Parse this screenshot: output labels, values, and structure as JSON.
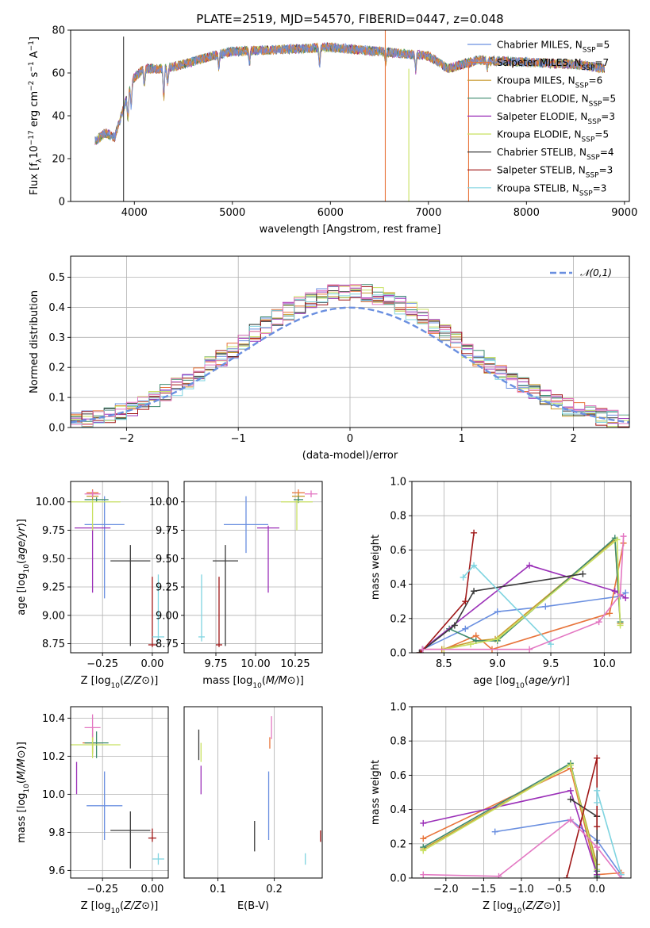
{
  "chart_data": [
    {
      "type": "line",
      "id": "spectrum",
      "title": "PLATE=2519, MJD=54570, FIBERID=0447, z=0.048",
      "xlabel": "wavelength [Angstrom, rest frame]",
      "ylabel": "Flux [f_λ 10^-17 erg cm^-2 s^-1 A^-1]",
      "xlim": [
        3350,
        9050
      ],
      "ylim": [
        0,
        80
      ],
      "xticks": [
        4000,
        5000,
        6000,
        7000,
        8000,
        9000
      ],
      "yticks": [
        0,
        20,
        40,
        60,
        80
      ],
      "legend_position": "top-right",
      "series": [
        {
          "name": "Chabrier MILES, N_SSP=5",
          "color": "#6a8fe0"
        },
        {
          "name": "Salpeter MILES, N_SSP=7",
          "color": "#e8743b"
        },
        {
          "name": "Kroupa MILES, N_SSP=6",
          "color": "#c89a2e"
        },
        {
          "name": "Chabrier ELODIE, N_SSP=5",
          "color": "#3e8a6e"
        },
        {
          "name": "Salpeter ELODIE, N_SSP=3",
          "color": "#9b30b8"
        },
        {
          "name": "Kroupa ELODIE, N_SSP=5",
          "color": "#c8e060"
        },
        {
          "name": "Chabrier STELIB, N_SSP=4",
          "color": "#3a3a3a"
        },
        {
          "name": "Salpeter STELIB, N_SSP=3",
          "color": "#a01818"
        },
        {
          "name": "Kroupa STELIB, N_SSP=3",
          "color": "#7fd4e0"
        }
      ],
      "continuum": {
        "x": [
          3600,
          3700,
          3800,
          3900,
          4000,
          4100,
          4300,
          4500,
          4800,
          5000,
          5500,
          6000,
          6500,
          7000,
          7200,
          7500,
          8000,
          8500,
          8800
        ],
        "y": [
          28,
          32,
          30,
          45,
          58,
          62,
          62,
          64,
          68,
          70,
          71,
          72,
          70,
          68,
          62,
          66,
          65,
          64,
          62
        ]
      },
      "spikes": [
        {
          "x": 3890,
          "low": 0,
          "high": 77
        },
        {
          "x": 6560,
          "low": 0,
          "high": 80
        },
        {
          "x": 6800,
          "low": 0,
          "high": 62
        },
        {
          "x": 7410,
          "low": 0,
          "high": 64
        }
      ]
    },
    {
      "type": "area",
      "id": "residual_hist",
      "xlabel": "(data-model)/error",
      "ylabel": "Normed distribution",
      "xlim": [
        -2.5,
        2.5
      ],
      "ylim": [
        0,
        0.57
      ],
      "xticks": [
        -2,
        -1,
        0,
        1,
        2
      ],
      "yticks": [
        0.0,
        0.1,
        0.2,
        0.3,
        0.4,
        0.5
      ],
      "legend": [
        {
          "name": "𝒩(0,1)",
          "color": "#6a8fe0",
          "style": "dashed"
        }
      ],
      "legend_position": "top-right",
      "bin_width": 0.1
    },
    {
      "type": "scatter",
      "id": "age_vs_Z",
      "xlabel": "Z [log10(Z/Z☉)]",
      "ylabel": "age [log10(age/yr)]",
      "xlim": [
        -0.41,
        0.08
      ],
      "ylim": [
        8.67,
        10.18
      ],
      "xticks": [
        -0.25,
        0.0
      ],
      "yticks": [
        8.75,
        9.0,
        9.25,
        9.5,
        9.75,
        10.0
      ],
      "points": [
        {
          "x": -0.24,
          "y": 9.8,
          "xerr": 0.1,
          "yerr_lo": 0.65,
          "yerr_hi": 0.25,
          "color": "#6a8fe0"
        },
        {
          "x": -0.3,
          "y": 10.08,
          "xerr": 0.03,
          "yerr_lo": 0.03,
          "yerr_hi": 0.03,
          "color": "#e8743b"
        },
        {
          "x": -0.3,
          "y": 10.05,
          "xerr": 0.03,
          "yerr_lo": 0.03,
          "yerr_hi": 0.03,
          "color": "#c89a2e"
        },
        {
          "x": -0.28,
          "y": 10.02,
          "xerr": 0.06,
          "yerr_lo": 0.02,
          "yerr_hi": 0.02,
          "color": "#3e8a6e"
        },
        {
          "x": -0.3,
          "y": 9.77,
          "xerr": 0.09,
          "yerr_lo": 0.57,
          "yerr_hi": 0.02,
          "color": "#9b30b8"
        },
        {
          "x": -0.3,
          "y": 10.0,
          "xerr": 0.14,
          "yerr_lo": 0.25,
          "yerr_hi": 0.02,
          "color": "#c8e060"
        },
        {
          "x": -0.11,
          "y": 9.48,
          "xerr": 0.1,
          "yerr_lo": 0.75,
          "yerr_hi": 0.14,
          "color": "#3a3a3a"
        },
        {
          "x": 0.0,
          "y": 8.74,
          "xerr": 0.02,
          "yerr_lo": 0.02,
          "yerr_hi": 0.6,
          "color": "#a01818"
        },
        {
          "x": 0.03,
          "y": 8.81,
          "xerr": 0.03,
          "yerr_lo": 0.04,
          "yerr_hi": 0.55,
          "color": "#7fd4e0"
        },
        {
          "x": -0.3,
          "y": 10.07,
          "xerr": 0.04,
          "yerr_lo": 0.03,
          "yerr_hi": 0.03,
          "color": "#e377c2"
        }
      ]
    },
    {
      "type": "scatter",
      "id": "age_vs_mass",
      "xlabel": "mass [log10(M/M☉)]",
      "ylabel": "",
      "xlim": [
        9.55,
        10.42
      ],
      "ylim": [
        8.67,
        10.18
      ],
      "xticks": [
        9.75,
        10.0,
        10.25
      ],
      "yticks": [
        8.75,
        9.0,
        9.25,
        9.5,
        9.75,
        10.0
      ],
      "points": [
        {
          "x": 9.94,
          "y": 9.8,
          "xerr": 0.14,
          "yerr_lo": 0.25,
          "yerr_hi": 0.25,
          "color": "#6a8fe0"
        },
        {
          "x": 10.27,
          "y": 10.08,
          "xerr": 0.04,
          "yerr_lo": 0.03,
          "yerr_hi": 0.03,
          "color": "#e8743b"
        },
        {
          "x": 10.27,
          "y": 10.05,
          "xerr": 0.04,
          "yerr_lo": 0.03,
          "yerr_hi": 0.03,
          "color": "#c89a2e"
        },
        {
          "x": 10.27,
          "y": 10.02,
          "xerr": 0.03,
          "yerr_lo": 0.03,
          "yerr_hi": 0.03,
          "color": "#3e8a6e"
        },
        {
          "x": 10.08,
          "y": 9.77,
          "xerr": 0.07,
          "yerr_lo": 0.57,
          "yerr_hi": 0.02,
          "color": "#9b30b8"
        },
        {
          "x": 10.26,
          "y": 10.0,
          "xerr": 0.1,
          "yerr_lo": 0.25,
          "yerr_hi": 0.02,
          "color": "#c8e060"
        },
        {
          "x": 9.81,
          "y": 9.48,
          "xerr": 0.08,
          "yerr_lo": 0.75,
          "yerr_hi": 0.14,
          "color": "#3a3a3a"
        },
        {
          "x": 9.77,
          "y": 8.74,
          "xerr": 0.02,
          "yerr_lo": 0.02,
          "yerr_hi": 0.6,
          "color": "#a01818"
        },
        {
          "x": 9.66,
          "y": 8.81,
          "xerr": 0.02,
          "yerr_lo": 0.04,
          "yerr_hi": 0.55,
          "color": "#7fd4e0"
        },
        {
          "x": 10.35,
          "y": 10.07,
          "xerr": 0.04,
          "yerr_lo": 0.03,
          "yerr_hi": 0.03,
          "color": "#e377c2"
        }
      ]
    },
    {
      "type": "line",
      "id": "weight_vs_age",
      "xlabel": "age [log10(age/yr)]",
      "ylabel": "mass weight",
      "xlim": [
        8.2,
        10.25
      ],
      "ylim": [
        0,
        1.0
      ],
      "xticks": [
        8.5,
        9.0,
        9.5,
        10.0
      ],
      "yticks": [
        0.0,
        0.2,
        0.4,
        0.6,
        0.8,
        1.0
      ],
      "series": [
        {
          "color": "#6a8fe0",
          "x": [
            8.3,
            8.7,
            9.0,
            9.45,
            10.15,
            10.2
          ],
          "y": [
            0.02,
            0.14,
            0.24,
            0.27,
            0.33,
            0.35
          ]
        },
        {
          "color": "#e8743b",
          "x": [
            8.3,
            8.5,
            8.8,
            8.95,
            10.05,
            10.18
          ],
          "y": [
            0.02,
            0.02,
            0.1,
            0.02,
            0.23,
            0.64
          ]
        },
        {
          "color": "#c89a2e",
          "x": [
            8.48,
            8.8,
            8.98,
            10.1,
            10.15
          ],
          "y": [
            0.02,
            0.07,
            0.08,
            0.66,
            0.17
          ]
        },
        {
          "color": "#3e8a6e",
          "x": [
            8.3,
            8.55,
            8.8,
            9.0,
            10.1,
            10.15
          ],
          "y": [
            0.02,
            0.14,
            0.07,
            0.07,
            0.67,
            0.18
          ]
        },
        {
          "color": "#9b30b8",
          "x": [
            8.3,
            9.3,
            10.1,
            10.2
          ],
          "y": [
            0.02,
            0.51,
            0.36,
            0.32
          ]
        },
        {
          "color": "#c8e060",
          "x": [
            8.5,
            8.75,
            9.0,
            10.12,
            10.15
          ],
          "y": [
            0.02,
            0.05,
            0.08,
            0.66,
            0.16
          ]
        },
        {
          "color": "#3a3a3a",
          "x": [
            8.27,
            8.6,
            8.78,
            9.8
          ],
          "y": [
            0.0,
            0.16,
            0.36,
            0.46
          ]
        },
        {
          "color": "#a01818",
          "x": [
            8.28,
            8.7,
            8.78
          ],
          "y": [
            0.0,
            0.3,
            0.7
          ]
        },
        {
          "color": "#7fd4e0",
          "x": [
            8.68,
            8.78,
            9.5
          ],
          "y": [
            0.44,
            0.51,
            0.05
          ]
        },
        {
          "color": "#e377c2",
          "x": [
            8.3,
            9.3,
            9.95,
            10.15,
            10.18
          ],
          "y": [
            0.02,
            0.02,
            0.18,
            0.34,
            0.68
          ]
        }
      ]
    },
    {
      "type": "scatter",
      "id": "mass_vs_Z",
      "xlabel": "Z [log10(Z/Z☉)]",
      "ylabel": "mass [log10(M/M☉)]",
      "xlim": [
        -0.41,
        0.08
      ],
      "ylim": [
        9.56,
        10.46
      ],
      "xticks": [
        -0.25,
        0.0
      ],
      "yticks": [
        9.6,
        9.8,
        10.0,
        10.2,
        10.4
      ],
      "points": [
        {
          "x": -0.24,
          "y": 9.94,
          "xerr": 0.09,
          "yerr_lo": 0.18,
          "yerr_hi": 0.18,
          "color": "#6a8fe0"
        },
        {
          "x": -0.3,
          "y": 10.27,
          "xerr": 0.05,
          "yerr_lo": 0.06,
          "yerr_hi": 0.08,
          "color": "#e8743b"
        },
        {
          "x": -0.3,
          "y": 10.27,
          "xerr": 0.04,
          "yerr_lo": 0.05,
          "yerr_hi": 0.05,
          "color": "#c89a2e"
        },
        {
          "x": -0.28,
          "y": 10.27,
          "xerr": 0.06,
          "yerr_lo": 0.08,
          "yerr_hi": 0.06,
          "color": "#3e8a6e"
        },
        {
          "x": -0.38,
          "y": 10.07,
          "xerr": 0.0,
          "yerr_lo": 0.07,
          "yerr_hi": 0.1,
          "color": "#9b30b8"
        },
        {
          "x": -0.3,
          "y": 10.26,
          "xerr": 0.14,
          "yerr_lo": 0.07,
          "yerr_hi": 0.06,
          "color": "#c8e060"
        },
        {
          "x": -0.11,
          "y": 9.81,
          "xerr": 0.1,
          "yerr_lo": 0.2,
          "yerr_hi": 0.1,
          "color": "#3a3a3a"
        },
        {
          "x": 0.0,
          "y": 9.77,
          "xerr": 0.02,
          "yerr_lo": 0.02,
          "yerr_hi": 0.05,
          "color": "#a01818"
        },
        {
          "x": 0.03,
          "y": 9.66,
          "xerr": 0.03,
          "yerr_lo": 0.03,
          "yerr_hi": 0.03,
          "color": "#7fd4e0"
        },
        {
          "x": -0.3,
          "y": 10.35,
          "xerr": 0.04,
          "yerr_lo": 0.05,
          "yerr_hi": 0.07,
          "color": "#e377c2"
        }
      ]
    },
    {
      "type": "scatter",
      "id": "mass_vs_ebv",
      "xlabel": "E(B-V)",
      "ylabel": "",
      "xlim": [
        0.04,
        0.285
      ],
      "ylim": [
        9.56,
        10.46
      ],
      "xticks": [
        0.1,
        0.2
      ],
      "points": [
        {
          "x": 0.07,
          "y": 10.05,
          "yerr_lo": 0.05,
          "yerr_hi": 0.1,
          "color": "#9b30b8"
        },
        {
          "x": 0.07,
          "y": 10.22,
          "yerr_lo": 0.05,
          "yerr_hi": 0.05,
          "color": "#c8e060"
        },
        {
          "x": 0.066,
          "y": 10.26,
          "yerr_lo": 0.08,
          "yerr_hi": 0.08,
          "color": "#3a3a3a"
        },
        {
          "x": 0.165,
          "y": 9.78,
          "yerr_lo": 0.08,
          "yerr_hi": 0.08,
          "color": "#3a3a3a"
        },
        {
          "x": 0.19,
          "y": 9.94,
          "yerr_lo": 0.18,
          "yerr_hi": 0.18,
          "color": "#6a8fe0"
        },
        {
          "x": 0.192,
          "y": 10.27,
          "yerr_lo": 0.03,
          "yerr_hi": 0.03,
          "color": "#e8743b"
        },
        {
          "x": 0.195,
          "y": 10.35,
          "yerr_lo": 0.06,
          "yerr_hi": 0.06,
          "color": "#e377c2"
        },
        {
          "x": 0.255,
          "y": 9.66,
          "yerr_lo": 0.03,
          "yerr_hi": 0.03,
          "color": "#7fd4e0"
        },
        {
          "x": 0.282,
          "y": 9.78,
          "yerr_lo": 0.03,
          "yerr_hi": 0.03,
          "color": "#a01818"
        }
      ]
    },
    {
      "type": "line",
      "id": "weight_vs_Z",
      "xlabel": "Z [log10(Z/Z☉)]",
      "ylabel": "mass weight",
      "xlim": [
        -2.45,
        0.45
      ],
      "ylim": [
        0,
        1.0
      ],
      "xticks": [
        -2.0,
        -1.5,
        -1.0,
        -0.5,
        0.0
      ],
      "yticks": [
        0.0,
        0.2,
        0.4,
        0.6,
        0.8,
        1.0
      ],
      "series": [
        {
          "color": "#6a8fe0",
          "x": [
            -1.35,
            -0.35,
            0.0,
            0.32
          ],
          "y": [
            0.27,
            0.34,
            0.22,
            0.02
          ]
        },
        {
          "color": "#e8743b",
          "x": [
            -2.3,
            -0.35,
            0.0,
            0.32
          ],
          "y": [
            0.23,
            0.64,
            0.02,
            0.03
          ]
        },
        {
          "color": "#c89a2e",
          "x": [
            -2.3,
            -0.35,
            0.0
          ],
          "y": [
            0.17,
            0.66,
            0.08
          ]
        },
        {
          "color": "#3e8a6e",
          "x": [
            -2.3,
            -0.35,
            0.0,
            0.0
          ],
          "y": [
            0.18,
            0.67,
            0.04,
            0.01
          ]
        },
        {
          "color": "#9b30b8",
          "x": [
            -2.3,
            -0.35,
            0.0
          ],
          "y": [
            0.32,
            0.51,
            0.02
          ]
        },
        {
          "color": "#c8e060",
          "x": [
            -2.3,
            -0.35,
            0.0
          ],
          "y": [
            0.16,
            0.66,
            0.05
          ]
        },
        {
          "color": "#3a3a3a",
          "x": [
            -0.35,
            0.0,
            0.0
          ],
          "y": [
            0.46,
            0.36,
            0.0
          ]
        },
        {
          "color": "#a01818",
          "x": [
            -0.4,
            0.0,
            0.0
          ],
          "y": [
            0.0,
            0.7,
            0.3
          ]
        },
        {
          "color": "#7fd4e0",
          "x": [
            0.0,
            0.0,
            0.32
          ],
          "y": [
            0.44,
            0.51,
            0.02
          ]
        },
        {
          "color": "#e377c2",
          "x": [
            -2.3,
            -1.3,
            -0.35,
            0.0,
            0.32
          ],
          "y": [
            0.02,
            0.01,
            0.34,
            0.18,
            0.0
          ]
        }
      ]
    }
  ]
}
